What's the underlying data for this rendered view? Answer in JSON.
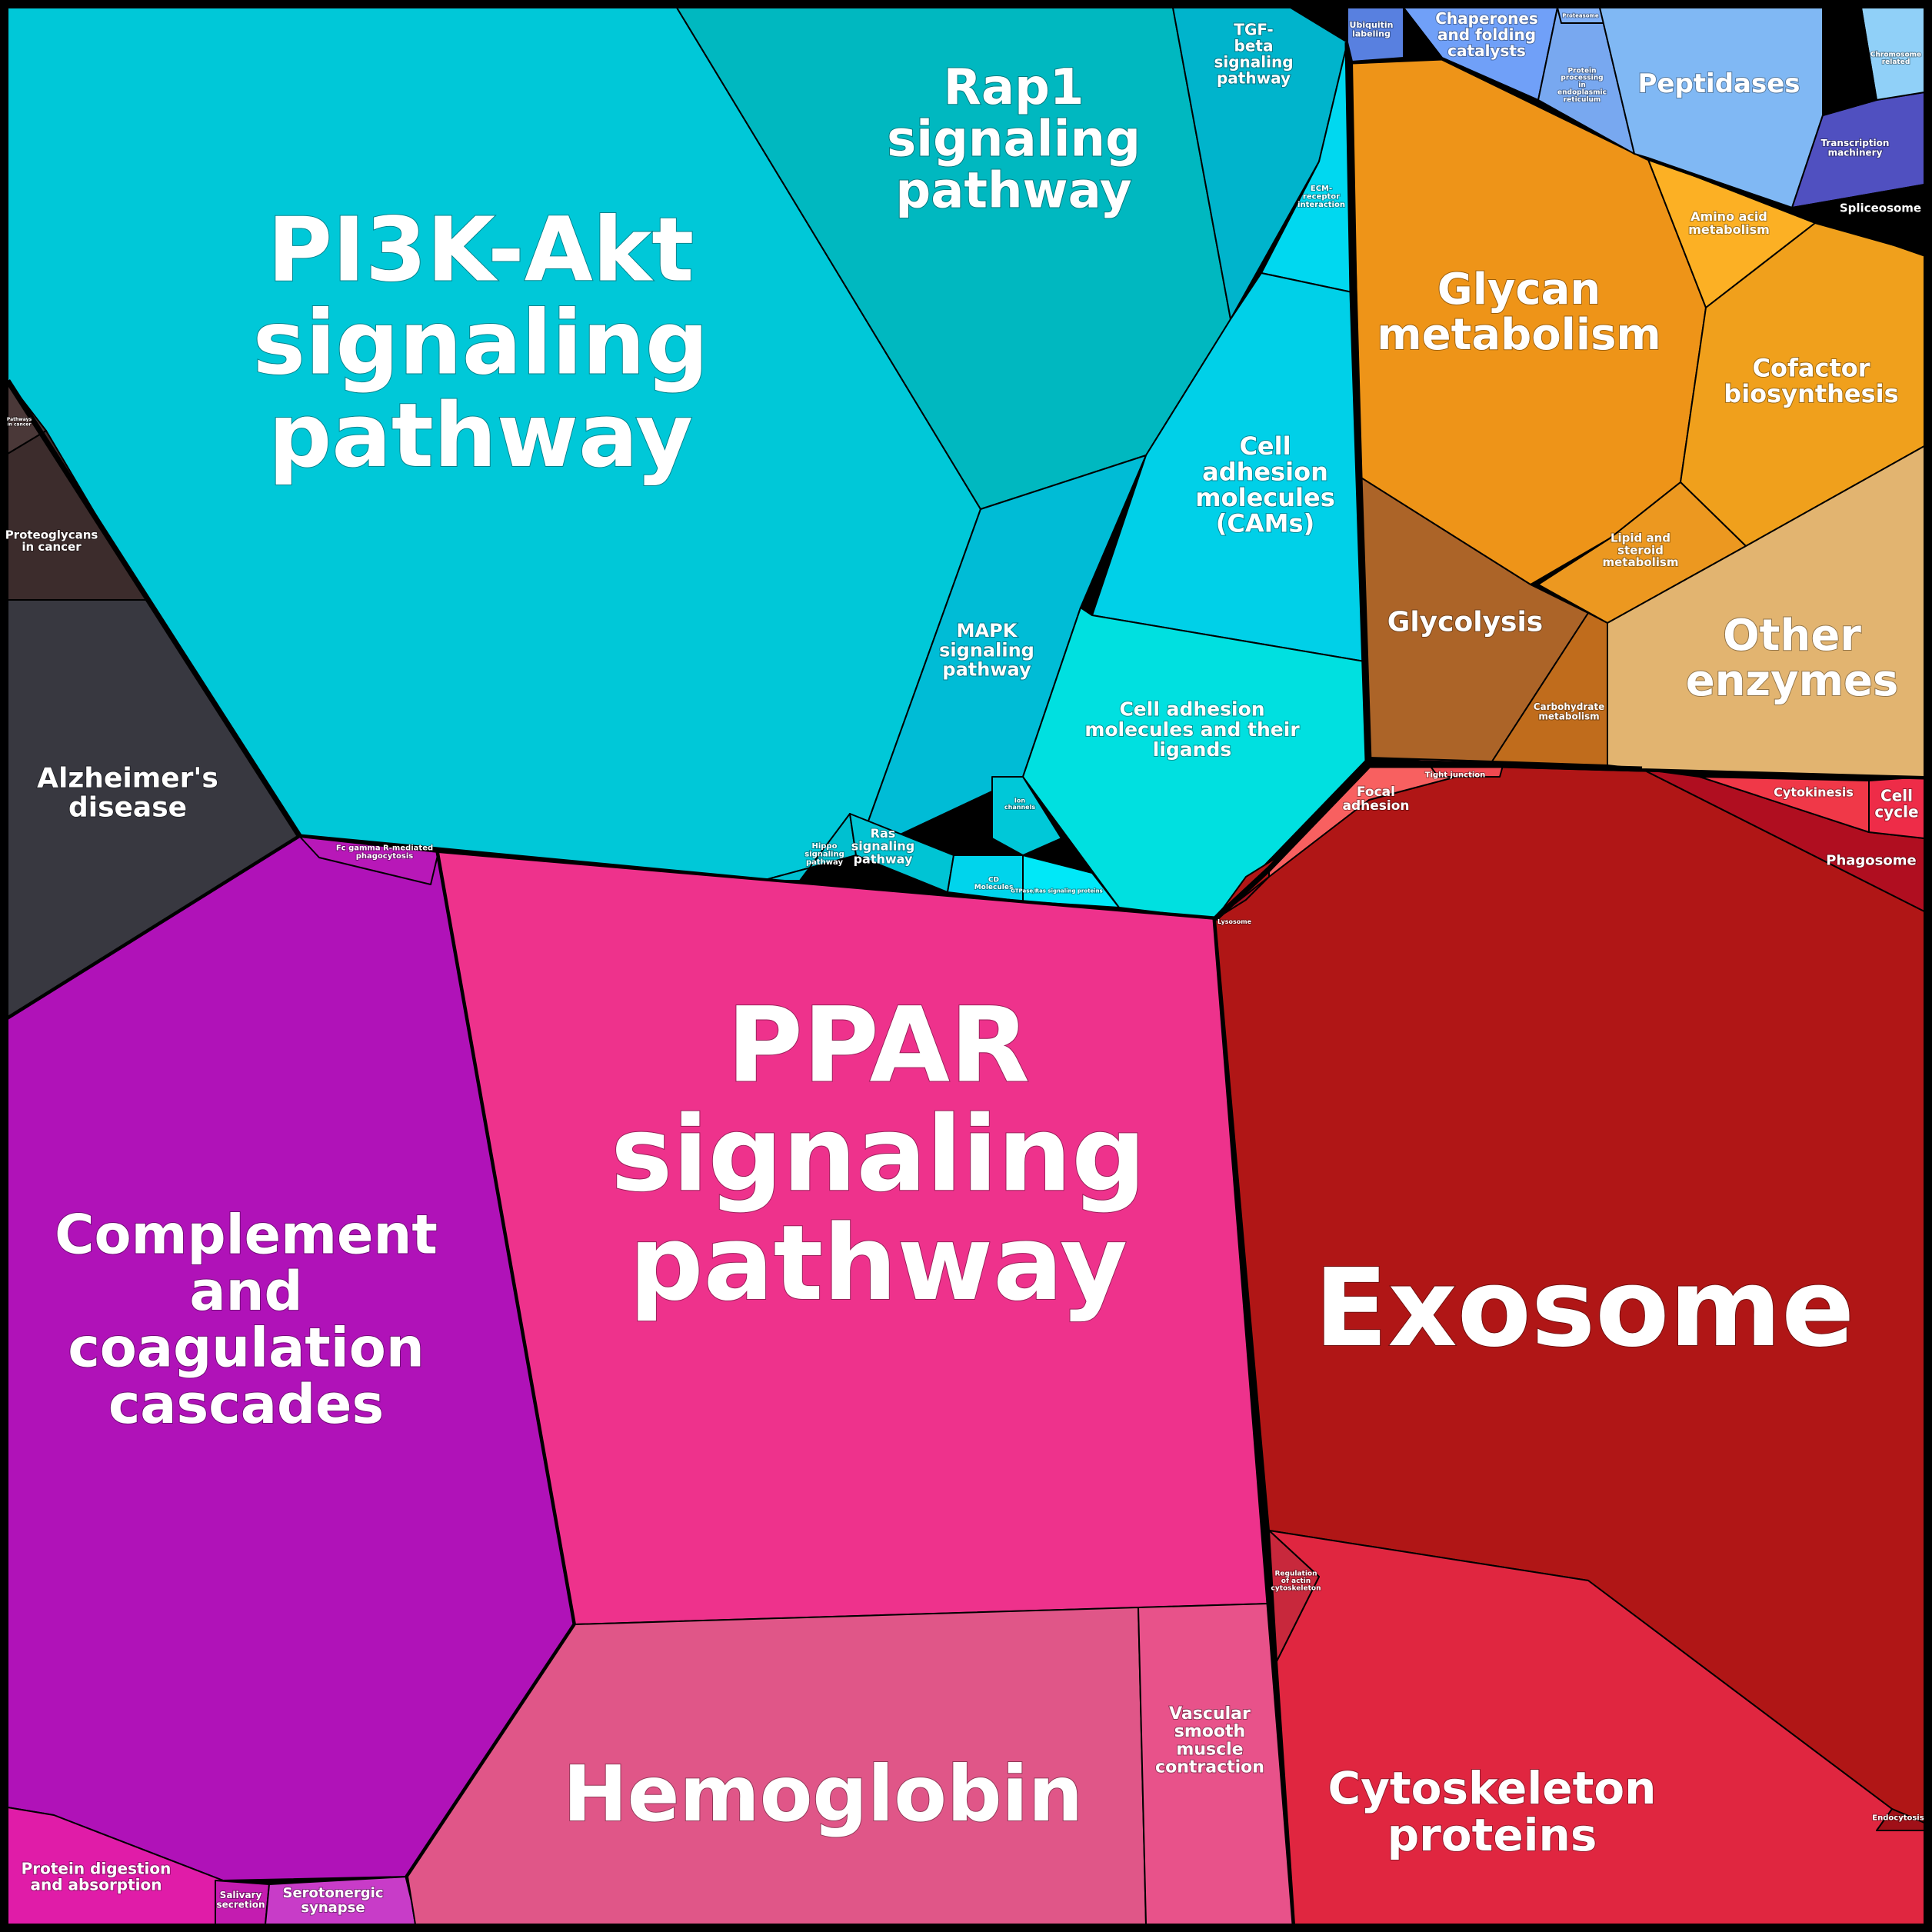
{
  "diagram": {
    "title": "",
    "cells": [
      {
        "id": "pi3k",
        "label": [
          "PI3K-Akt",
          "signaling",
          "pathway"
        ],
        "color": "#00c8d8"
      },
      {
        "id": "rap1",
        "label": [
          "Rap1",
          "signaling",
          "pathway"
        ],
        "color": "#00b8c0"
      },
      {
        "id": "tgf",
        "label": [
          "TGF-",
          "beta",
          "signaling",
          "pathway"
        ],
        "color": "#00b4cc"
      },
      {
        "id": "ecm",
        "label": [
          "ECM-",
          "receptor",
          "interaction"
        ],
        "color": "#00d8f0"
      },
      {
        "id": "mapk",
        "label": [
          "MAPK",
          "signaling",
          "pathway"
        ],
        "color": "#00bcd6"
      },
      {
        "id": "cams",
        "label": [
          "Cell",
          "adhesion",
          "molecules",
          "(CAMs)"
        ],
        "color": "#00d0e8"
      },
      {
        "id": "camlig",
        "label": [
          "Cell adhesion",
          "molecules and their",
          "ligands"
        ],
        "color": "#00e0e0"
      },
      {
        "id": "hippo",
        "label": [
          "Hippo",
          "signaling",
          "pathway"
        ],
        "color": "#00c0d0"
      },
      {
        "id": "ras",
        "label": [
          "Ras",
          "signaling",
          "pathway"
        ],
        "color": "#00c4d4"
      },
      {
        "id": "cd",
        "label": [
          "CD",
          "Molecules"
        ],
        "color": "#00d4ec"
      },
      {
        "id": "gtp",
        "label": [
          "GTPase/Ras signaling proteins"
        ],
        "color": "#00e8f8"
      },
      {
        "id": "ion",
        "label": [
          "Ion",
          "channels"
        ],
        "color": "#00c8d8"
      },
      {
        "id": "proteo",
        "label": [
          "Proteoglycans",
          "in cancer"
        ],
        "color": "#3c2c2c"
      },
      {
        "id": "pathcancer",
        "label": [
          "Pathways",
          "in cancer"
        ],
        "color": "#4a3838"
      },
      {
        "id": "alz",
        "label": [
          "Alzheimer's",
          "disease"
        ],
        "color": "#383840"
      },
      {
        "id": "complement",
        "label": [
          "Complement",
          "and",
          "coagulation",
          "cascades"
        ],
        "color": "#b012b8"
      },
      {
        "id": "fcgamma",
        "label": [
          "Fc gamma R-mediated",
          "phagocytosis"
        ],
        "color": "#b818b8"
      },
      {
        "id": "ppar",
        "label": [
          "PPAR",
          "signaling",
          "pathway"
        ],
        "color": "#ee328c"
      },
      {
        "id": "hemoglobin",
        "label": [
          "Hemoglobin"
        ],
        "color": "#e05688"
      },
      {
        "id": "vascular",
        "label": [
          "Vascular",
          "smooth",
          "muscle",
          "contraction"
        ],
        "color": "#e8528a"
      },
      {
        "id": "protdig",
        "label": [
          "Protein digestion",
          "and absorption"
        ],
        "color": "#e01ca8"
      },
      {
        "id": "salivary",
        "label": [
          "Salivary",
          "secretion"
        ],
        "color": "#c41cb0"
      },
      {
        "id": "serot",
        "label": [
          "Serotonergic",
          "synapse"
        ],
        "color": "#c83cc8"
      },
      {
        "id": "exosome",
        "label": [
          "Exosome"
        ],
        "color": "#b01616"
      },
      {
        "id": "cytoskel",
        "label": [
          "Cytoskeleton",
          "proteins"
        ],
        "color": "#e02640"
      },
      {
        "id": "regactin",
        "label": [
          "Regulation",
          "of actin",
          "cytoskeleton"
        ],
        "color": "#c8283c"
      },
      {
        "id": "phagosome",
        "label": [
          "Phagosome"
        ],
        "color": "#b00e20"
      },
      {
        "id": "cytokinesis",
        "label": [
          "Cytokinesis"
        ],
        "color": "#f03848"
      },
      {
        "id": "cellcycle",
        "label": [
          "Cell",
          "cycle"
        ],
        "color": "#ee2c48"
      },
      {
        "id": "endocytosis",
        "label": [
          "Endocytosis"
        ],
        "color": "#a01018"
      },
      {
        "id": "focal",
        "label": [
          "Focal",
          "adhesion"
        ],
        "color": "#f86060"
      },
      {
        "id": "tight",
        "label": [
          "Tight junction"
        ],
        "color": "#f04850"
      },
      {
        "id": "lysosome",
        "label": [
          "Lysosome"
        ],
        "color": "#a01020"
      },
      {
        "id": "glycan",
        "label": [
          "Glycan",
          "metabolism"
        ],
        "color": "#ee9418"
      },
      {
        "id": "aamet",
        "label": [
          "Amino acid",
          "metabolism"
        ],
        "color": "#fcb024"
      },
      {
        "id": "cofactor",
        "label": [
          "Cofactor",
          "biosynthesis"
        ],
        "color": "#f0a01c"
      },
      {
        "id": "lipid",
        "label": [
          "Lipid and",
          "steroid",
          "metabolism"
        ],
        "color": "#ec9820"
      },
      {
        "id": "glycolysis",
        "label": [
          "Glycolysis"
        ],
        "color": "#ac6428"
      },
      {
        "id": "carbo",
        "label": [
          "Carbohydrate",
          "metabolism"
        ],
        "color": "#c06c1c"
      },
      {
        "id": "other",
        "label": [
          "Other",
          "enzymes"
        ],
        "color": "#e2b470"
      },
      {
        "id": "ubiq",
        "label": [
          "Ubiquitin",
          "labeling"
        ],
        "color": "#5880e0"
      },
      {
        "id": "chap",
        "label": [
          "Chaperones",
          "and folding",
          "catalysts"
        ],
        "color": "#70a0f8"
      },
      {
        "id": "protproc",
        "label": [
          "Protein",
          "processing",
          "in",
          "endoplasmic",
          "reticulum"
        ],
        "color": "#78a8f0"
      },
      {
        "id": "proteasome",
        "label": [
          "Proteasome"
        ],
        "color": "#80b0f8"
      },
      {
        "id": "peptidases",
        "label": [
          "Peptidases"
        ],
        "color": "#80b8f4"
      },
      {
        "id": "transcr",
        "label": [
          "Transcription",
          "machinery"
        ],
        "color": "#5050c0"
      },
      {
        "id": "spliceo",
        "label": [
          "Spliceosome"
        ],
        "color": "#3c44c0"
      },
      {
        "id": "chromo",
        "label": [
          "Chromosome",
          "related"
        ],
        "color": "#90d0f8"
      }
    ]
  }
}
